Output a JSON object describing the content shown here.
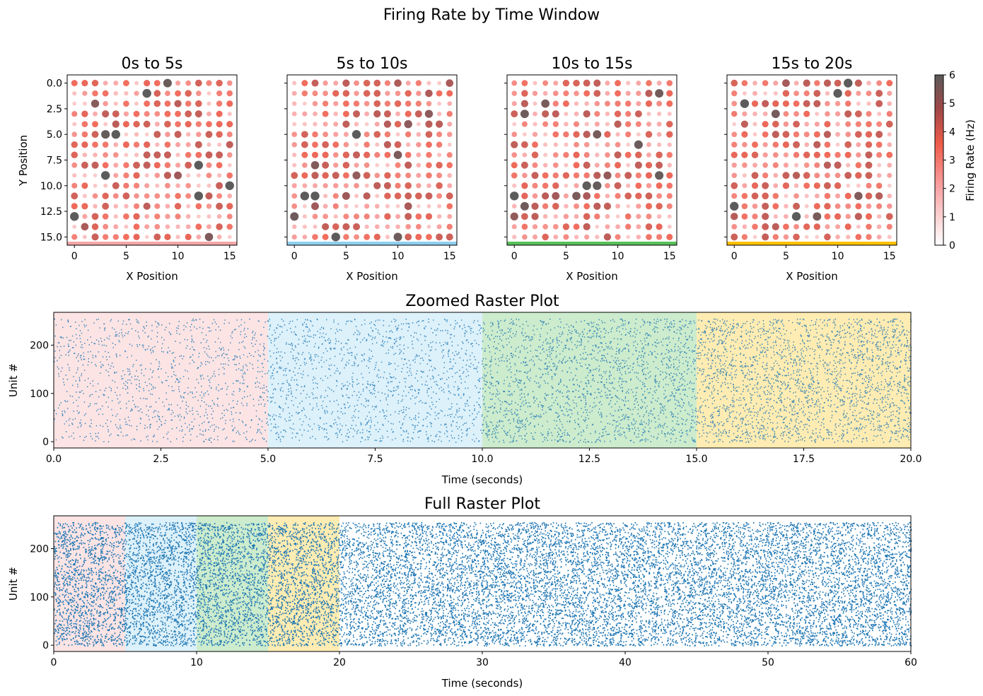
{
  "figure_title": "Firing Rate by Time Window",
  "colors": {
    "window_0": "#f4a6a6",
    "window_1": "#8ecfef",
    "window_2": "#58c058",
    "window_3": "#ffc000",
    "spike": "#1f77b4",
    "cmap_low": "#ffffff",
    "cmap_mid": "#f06050",
    "cmap_high": "#5a5a5a"
  },
  "chart_data": [
    {
      "type": "scatter",
      "title": "0s to 5s",
      "xlabel": "X Position",
      "ylabel": "Y Position",
      "xlim": [
        -0.7,
        15.7
      ],
      "ylim": [
        15.8,
        -0.8
      ],
      "xticks": [
        "0",
        "5",
        "10",
        "15"
      ],
      "yticks": [
        "0.0",
        "2.5",
        "5.0",
        "7.5",
        "10.0",
        "12.5",
        "15.0"
      ],
      "grid_shape": [
        16,
        16
      ],
      "window_color": "#f4a6a6",
      "grid": false
    },
    {
      "type": "scatter",
      "title": "5s to 10s",
      "xlabel": "X Position",
      "xlim": [
        -0.7,
        15.7
      ],
      "ylim": [
        15.8,
        -0.8
      ],
      "xticks": [
        "0",
        "5",
        "10",
        "15"
      ],
      "grid_shape": [
        16,
        16
      ],
      "window_color": "#8ecfef",
      "grid": false
    },
    {
      "type": "scatter",
      "title": "10s to 15s",
      "xlabel": "X Position",
      "xlim": [
        -0.7,
        15.7
      ],
      "ylim": [
        15.8,
        -0.8
      ],
      "xticks": [
        "0",
        "5",
        "10",
        "15"
      ],
      "grid_shape": [
        16,
        16
      ],
      "window_color": "#58c058",
      "grid": false
    },
    {
      "type": "scatter",
      "title": "15s to 20s",
      "xlabel": "X Position",
      "xlim": [
        -0.7,
        15.7
      ],
      "ylim": [
        15.8,
        -0.8
      ],
      "xticks": [
        "0",
        "5",
        "10",
        "15"
      ],
      "grid_shape": [
        16,
        16
      ],
      "window_color": "#ffc000",
      "grid": false
    },
    {
      "type": "heatmap",
      "colorbar_label": "Firing Rate (Hz)",
      "range": [
        0,
        6
      ],
      "ticks": [
        "0",
        "1",
        "2",
        "3",
        "4",
        "5",
        "6"
      ]
    },
    {
      "type": "scatter",
      "title": "Zoomed Raster Plot",
      "xlabel": "Time (seconds)",
      "ylabel": "Unit #",
      "xlim": [
        0,
        20
      ],
      "ylim": [
        -13,
        268
      ],
      "xticks": [
        "0.0",
        "2.5",
        "5.0",
        "7.5",
        "10.0",
        "12.5",
        "15.0",
        "17.5",
        "20.0"
      ],
      "yticks": [
        "0",
        "100",
        "200"
      ],
      "units": 256,
      "windows": [
        {
          "start": 0,
          "end": 5,
          "color": "#f4a6a6"
        },
        {
          "start": 5,
          "end": 10,
          "color": "#8ecfef"
        },
        {
          "start": 10,
          "end": 15,
          "color": "#58c058"
        },
        {
          "start": 15,
          "end": 20,
          "color": "#ffc000"
        }
      ],
      "spike_density_per_window": [
        0.45,
        0.55,
        0.8,
        1.0
      ]
    },
    {
      "type": "scatter",
      "title": "Full Raster Plot",
      "xlabel": "Time (seconds)",
      "ylabel": "Unit #",
      "xlim": [
        0,
        60
      ],
      "ylim": [
        -13,
        268
      ],
      "xticks": [
        "0",
        "10",
        "20",
        "30",
        "40",
        "50",
        "60"
      ],
      "yticks": [
        "0",
        "100",
        "200"
      ],
      "units": 256,
      "windows": [
        {
          "start": 0,
          "end": 5,
          "color": "#f4a6a6"
        },
        {
          "start": 5,
          "end": 10,
          "color": "#8ecfef"
        },
        {
          "start": 10,
          "end": 15,
          "color": "#58c058"
        },
        {
          "start": 15,
          "end": 20,
          "color": "#ffc000"
        }
      ]
    }
  ]
}
